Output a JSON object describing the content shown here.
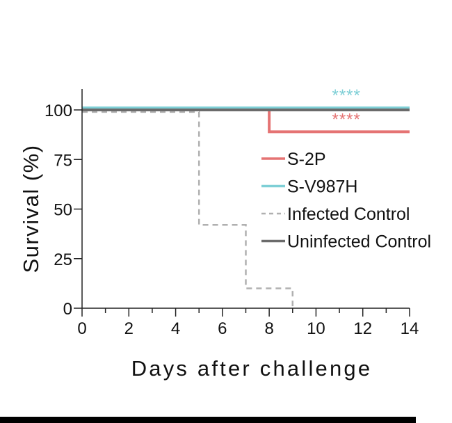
{
  "chart_data": {
    "type": "line",
    "step": true,
    "xlabel": "Days after challenge",
    "ylabel": "Survival (%)",
    "xlim": [
      0,
      14
    ],
    "ylim": [
      0,
      100
    ],
    "xticks": [
      0,
      2,
      4,
      6,
      8,
      10,
      12,
      14
    ],
    "yticks": [
      0,
      25,
      50,
      75,
      100
    ],
    "legend_position": "right",
    "series": [
      {
        "name": "S-2P",
        "color": "#e57373",
        "dash": false,
        "points": [
          [
            0,
            100
          ],
          [
            8,
            100
          ],
          [
            8,
            89
          ],
          [
            14,
            89
          ]
        ]
      },
      {
        "name": "S-V987H",
        "color": "#7ecfd6",
        "dash": false,
        "points": [
          [
            0,
            101
          ],
          [
            14,
            101
          ]
        ]
      },
      {
        "name": "Infected Control",
        "color": "#b0b0b0",
        "dash": true,
        "points": [
          [
            0,
            99
          ],
          [
            5,
            99
          ],
          [
            5,
            42
          ],
          [
            7,
            42
          ],
          [
            7,
            10
          ],
          [
            9,
            10
          ],
          [
            9,
            0
          ]
        ]
      },
      {
        "name": "Uninfected Control",
        "color": "#6b6b6b",
        "dash": false,
        "points": [
          [
            0,
            100
          ],
          [
            14,
            100
          ]
        ]
      }
    ],
    "annotations": [
      {
        "text": "****",
        "color": "#7ecfd6",
        "x": 11.3,
        "y": 104.5
      },
      {
        "text": "****",
        "color": "#e57373",
        "x": 11.3,
        "y": 92.5
      }
    ]
  }
}
